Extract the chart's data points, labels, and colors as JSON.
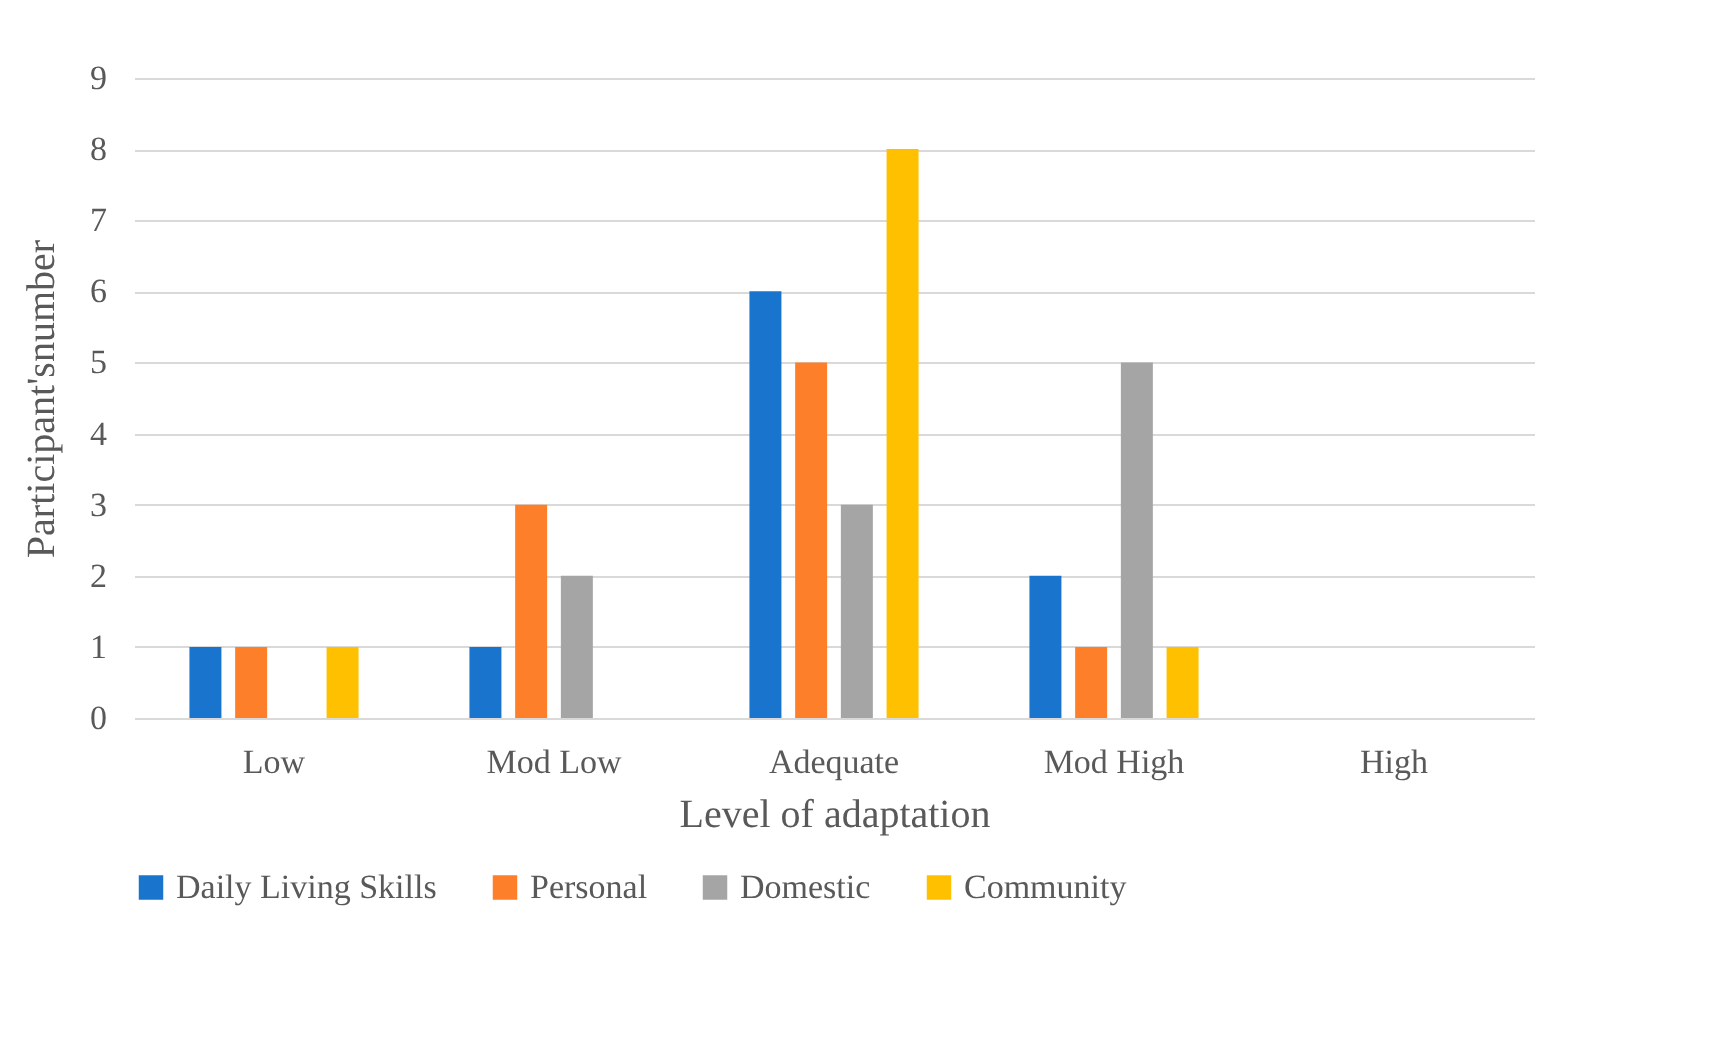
{
  "chart_data": {
    "type": "bar",
    "xlabel": "Level of adaptation",
    "ylabel": "Participant'snumber",
    "categories": [
      "Low",
      "Mod Low",
      "Adequate",
      "Mod High",
      "High"
    ],
    "series": [
      {
        "name": "Daily Living Skills",
        "color": "#1874cd",
        "values": [
          1,
          1,
          6,
          2,
          0
        ]
      },
      {
        "name": "Personal",
        "color": "#fd7f2a",
        "values": [
          1,
          3,
          5,
          1,
          0
        ]
      },
      {
        "name": "Domestic",
        "color": "#a5a5a5",
        "values": [
          0,
          2,
          3,
          5,
          0
        ]
      },
      {
        "name": "Community",
        "color": "#ffc000",
        "values": [
          1,
          0,
          8,
          1,
          0
        ]
      }
    ],
    "ylim": [
      0,
      9
    ],
    "yticks": [
      0,
      1,
      2,
      3,
      4,
      5,
      6,
      7,
      8,
      9
    ],
    "grid": "y",
    "legend": "bottom"
  }
}
